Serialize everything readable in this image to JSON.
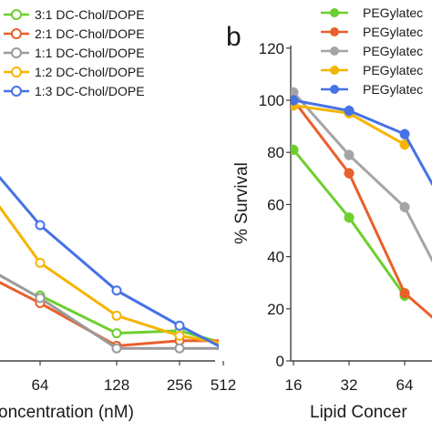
{
  "chart_data": [
    {
      "type": "line",
      "panel_label": "",
      "xlabel": "oncentration (nM)",
      "ylabel": "",
      "x_scale": "log2",
      "categories": [
        "64",
        "128",
        "256",
        "512"
      ],
      "ylim": [
        0,
        120
      ],
      "legend_position": "top",
      "series": [
        {
          "name": "3:1 DC-Chol/DOPE",
          "color": "#6dcf2e",
          "marker": "open-circle",
          "values": [
            26,
            11,
            12,
            7
          ]
        },
        {
          "name": "2:1 DC-Chol/DOPE",
          "color": "#e8602c",
          "marker": "open-circle",
          "values": [
            23,
            6,
            8,
            8
          ]
        },
        {
          "name": "1:1 DC-Chol/DOPE",
          "color": "#9a9a9a",
          "marker": "open-circle",
          "values": [
            25,
            5,
            5,
            5
          ]
        },
        {
          "name": "1:2 DC-Chol/DOPE",
          "color": "#f6b400",
          "marker": "open-circle",
          "values": [
            39,
            18,
            10,
            7
          ]
        },
        {
          "name": "1:3 DC-Chol/DOPE",
          "color": "#4672e6",
          "marker": "open-circle",
          "values": [
            54,
            28,
            14,
            5
          ]
        }
      ],
      "left_edge_values": {
        "1:3 DC-Chol/DOPE": 77,
        "1:2 DC-Chol/DOPE": 66,
        "1:1 DC-Chol/DOPE": 36,
        "2:1 DC-Chol/DOPE": 33
      }
    },
    {
      "type": "line",
      "panel_label": "b",
      "xlabel": "Lipid Concer",
      "ylabel": "% Survival",
      "x_scale": "log2",
      "categories": [
        "16",
        "32",
        "64"
      ],
      "ylim": [
        0,
        120
      ],
      "yticks": [
        0,
        20,
        40,
        60,
        80,
        100,
        120
      ],
      "legend_position": "top",
      "series": [
        {
          "name": "PEGylatec",
          "color": "#6dcf2e",
          "marker": "filled-circle",
          "values": [
            81,
            55,
            25
          ]
        },
        {
          "name": "PEGylatec",
          "color": "#e8602c",
          "marker": "filled-circle",
          "values": [
            100,
            72,
            26
          ]
        },
        {
          "name": "PEGylatec",
          "color": "#a5a5a5",
          "marker": "filled-circle",
          "values": [
            103,
            79,
            59
          ]
        },
        {
          "name": "PEGylatec",
          "color": "#f6b400",
          "marker": "filled-circle",
          "values": [
            98,
            95,
            83
          ]
        },
        {
          "name": "PEGylatec",
          "color": "#4672e6",
          "marker": "filled-circle",
          "values": [
            100,
            96,
            87
          ]
        }
      ],
      "right_edge_values": {
        "4": 58,
        "2": 28,
        "1": 12
      }
    }
  ]
}
